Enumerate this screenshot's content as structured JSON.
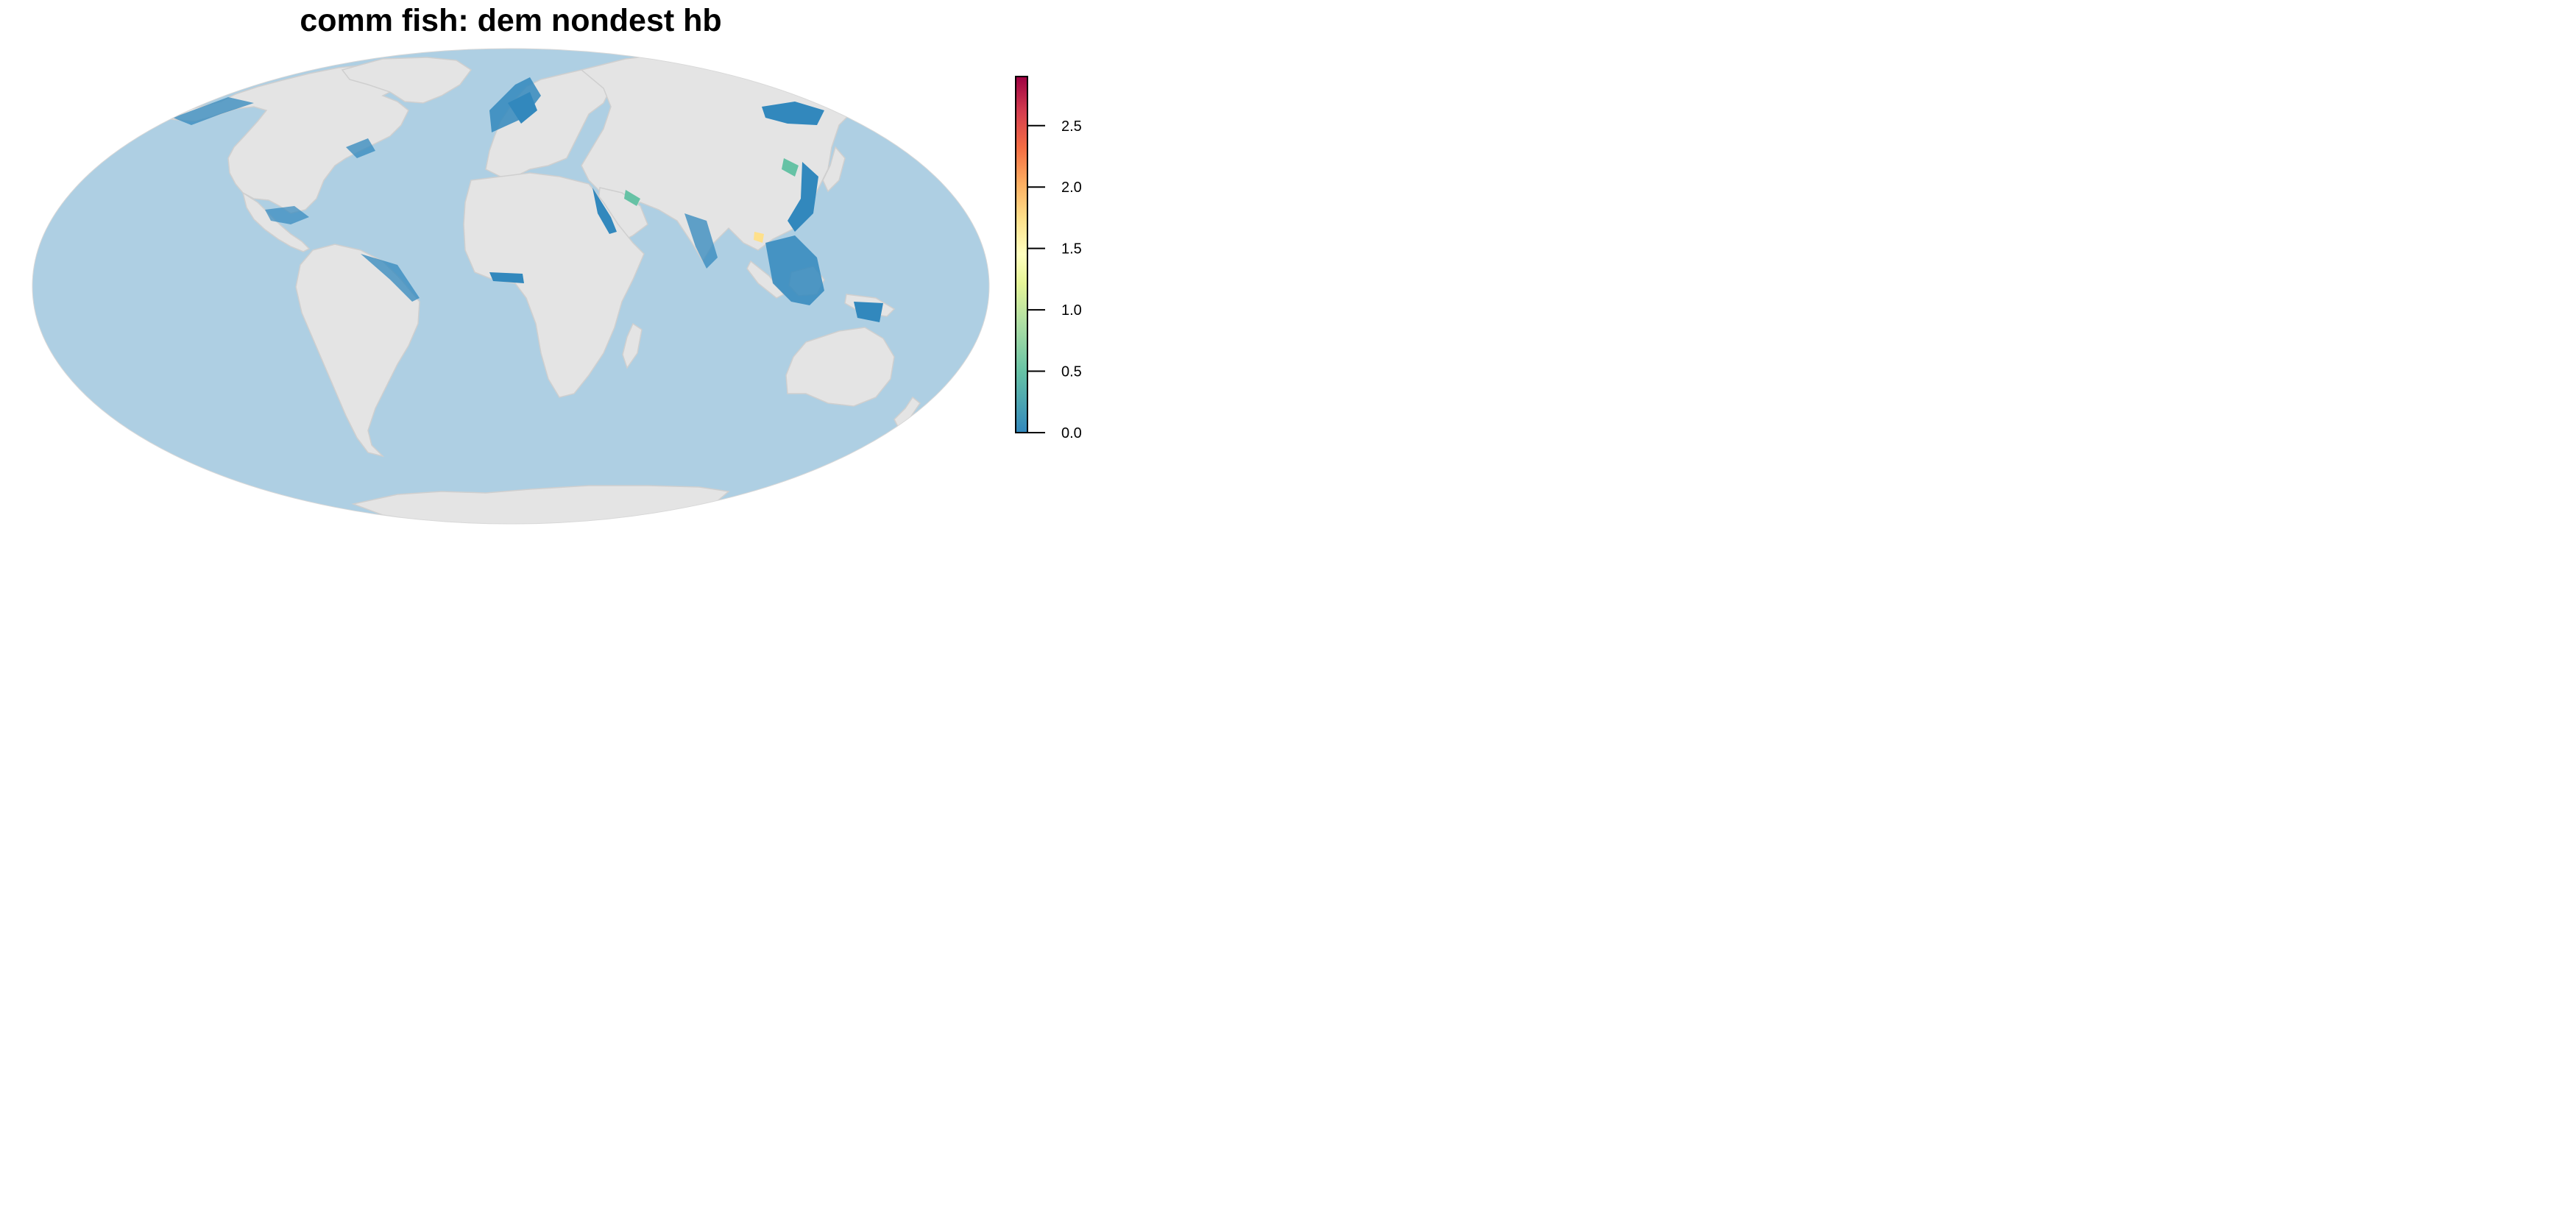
{
  "title": "comm fish: dem nondest hb",
  "colors": {
    "ocean": "#aecfe3",
    "land": "#e4e4e4",
    "borders": "#cfcfcf",
    "low_intensity": "#3288bd",
    "mid_intensity": "#66c2a5",
    "high_intensity": "#fee08b"
  },
  "legend": {
    "ticks": [
      "0.0",
      "0.5",
      "1.0",
      "1.5",
      "2.0",
      "2.5"
    ],
    "tick_values": [
      0,
      0.5,
      1.0,
      1.5,
      2.0,
      2.5
    ],
    "range": [
      0,
      2.9
    ],
    "colors": [
      "#3288bd",
      "#66c2a5",
      "#abdda4",
      "#e6f598",
      "#ffffbf",
      "#fee08b",
      "#fdae61",
      "#f46d43",
      "#d53e4f",
      "#9e0142"
    ]
  }
}
